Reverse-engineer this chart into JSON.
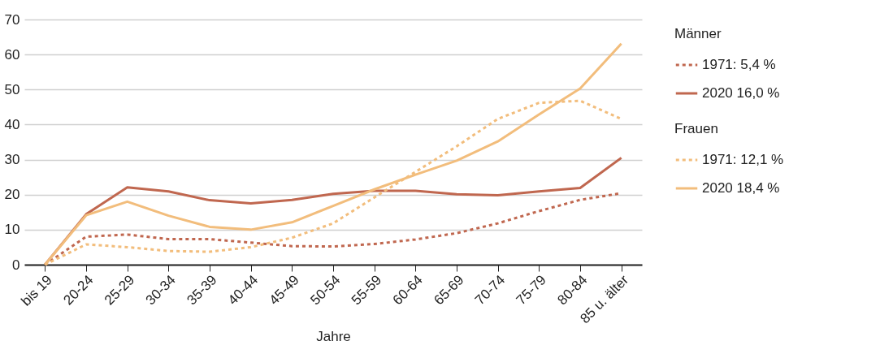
{
  "chart_data": {
    "type": "line",
    "xlabel": "Jahre",
    "categories": [
      "bis 19",
      "20-24",
      "25-29",
      "30-34",
      "35-39",
      "40-44",
      "45-49",
      "50-54",
      "55-59",
      "60-64",
      "65-69",
      "70-74",
      "75-79",
      "80-84",
      "85 u. älter"
    ],
    "series": [
      {
        "name": "1971: 5,4 %",
        "color": "#c0674f",
        "line_style": "dotted",
        "values": [
          0,
          8.0,
          8.6,
          7.3,
          7.3,
          6.3,
          5.3,
          5.2,
          5.9,
          7.2,
          9.0,
          11.8,
          15.3,
          18.5,
          20.4
        ]
      },
      {
        "name": "2020 16,0 %",
        "color": "#c0674f",
        "line_style": "solid",
        "values": [
          0,
          14.4,
          22.1,
          20.9,
          18.4,
          17.5,
          18.5,
          20.2,
          21.1,
          21.1,
          20.1,
          19.8,
          20.9,
          21.9,
          30.5
        ]
      },
      {
        "name": "1971: 12,1 %",
        "color": "#f2bd7c",
        "line_style": "dotted",
        "values": [
          0,
          5.8,
          5.0,
          3.9,
          3.7,
          5.0,
          7.7,
          11.8,
          19.2,
          26.5,
          33.8,
          41.6,
          46.2,
          46.8,
          41.6
        ]
      },
      {
        "name": "2020 18,4 %",
        "color": "#f2bd7c",
        "line_style": "solid",
        "values": [
          0,
          14.1,
          18.0,
          14.0,
          10.8,
          10.0,
          12.1,
          16.8,
          21.5,
          25.7,
          29.7,
          35.2,
          42.9,
          50.3,
          63.1
        ]
      }
    ],
    "annotations": [
      "Männer",
      "Frauen"
    ],
    "ylim": [
      0,
      70
    ],
    "yticks": [
      0,
      10,
      20,
      30,
      40,
      50,
      60,
      70
    ],
    "grid": "y",
    "legend": "right"
  }
}
